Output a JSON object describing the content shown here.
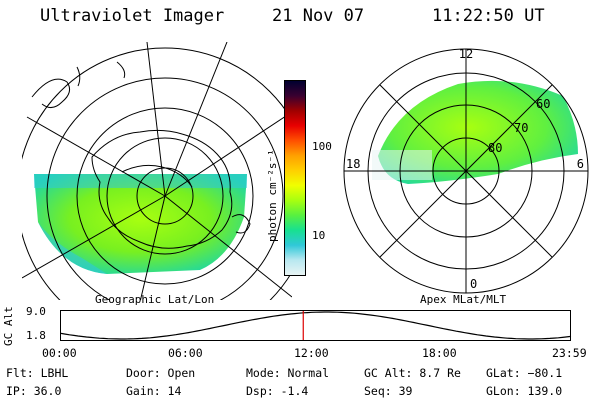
{
  "header": {
    "instrument": "Ultraviolet Imager",
    "date": "21 Nov 07",
    "time": "11:22:50 UT"
  },
  "geo_map": {
    "caption": "Geographic Lat/Lon"
  },
  "colorbar": {
    "unit_label": "photon cm⁻²s⁻¹",
    "ticks": [
      "100",
      "10"
    ],
    "colors": [
      "#000030",
      "#3a0030",
      "#a00000",
      "#e80000",
      "#ff5000",
      "#ffa000",
      "#ffd000",
      "#f0ff00",
      "#a8ff10",
      "#58f040",
      "#18e090",
      "#30c8d8",
      "#b8e8f0",
      "#e8f4f4"
    ]
  },
  "apex_map": {
    "caption": "Apex MLat/MLT",
    "mlt_labels": {
      "top": "12",
      "left": "18",
      "right": "6",
      "bottom": "0"
    },
    "lat_labels": [
      "60",
      "70",
      "80"
    ]
  },
  "altitude_plot": {
    "ylabel": "GC Alt",
    "ymax": "9.0",
    "ymin": "1.8",
    "ticks": [
      "00:00",
      "06:00",
      "12:00",
      "18:00",
      "23:59"
    ],
    "current_time_fraction": 0.475,
    "curve_color": "#000000",
    "marker_color": "#dd0000"
  },
  "status": {
    "flt": "Flt: LBHL",
    "ip": "IP: 36.0",
    "door": "Door: Open",
    "gain": "Gain: 14",
    "mode": "Mode: Normal",
    "dsp": "Dsp:   -1.4",
    "gc_alt": "GC Alt: 8.7 Re",
    "seq": "Seq: 39",
    "glat": "GLat: −80.1",
    "glon": "GLon: 139.0"
  }
}
